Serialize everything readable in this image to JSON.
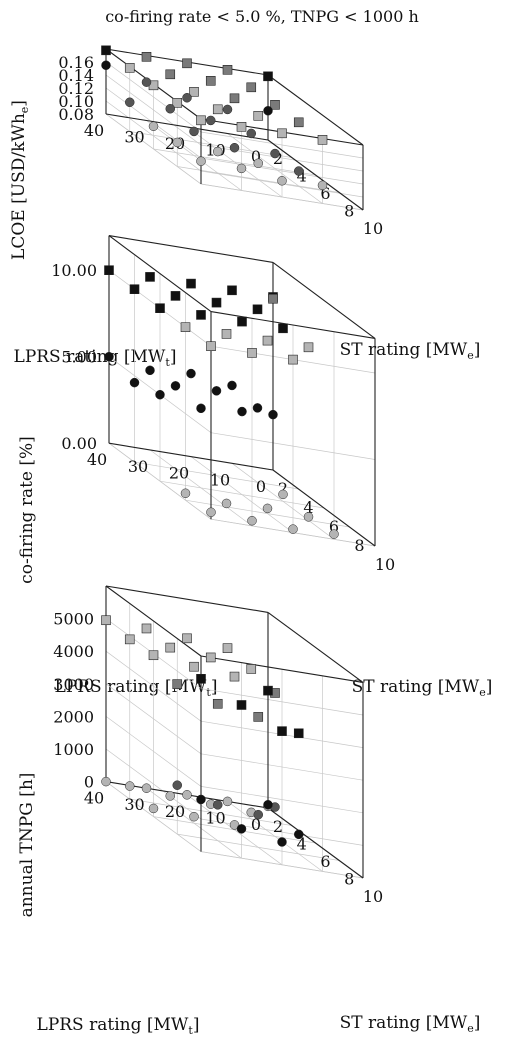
{
  "title": "co-firing rate < 5.0 %, TNPG < 1000 h",
  "colors": {
    "black": "#111111",
    "dark": "#555555",
    "mid": "#7a7a7a",
    "light": "#b4b4b4"
  },
  "chart_data": [
    {
      "type": "scatter3d",
      "xlabel": "ST rating [MW_e]",
      "ylabel": "LPRS rating [MW_t]",
      "zlabel": "LCOE [USD/kWh_e]",
      "xlim": [
        2,
        10
      ],
      "ylim": [
        0,
        40
      ],
      "zlim": [
        0.08,
        0.18
      ],
      "xticks": [
        "2",
        "4",
        "6",
        "8",
        "10"
      ],
      "yticks": [
        "0",
        "10",
        "20",
        "30",
        "40"
      ],
      "zticks": [
        "0.08",
        "0.10",
        "0.12",
        "0.14",
        "0.16"
      ],
      "grid": true,
      "series": [
        {
          "marker": "square",
          "color": "light",
          "points": [
            [
              4,
              40,
              0.178
            ],
            [
              6,
              40,
              0.178
            ],
            [
              8,
              40,
              0.178
            ],
            [
              10,
              40,
              0.178
            ],
            [
              6,
              30,
              0.178
            ],
            [
              8,
              30,
              0.178
            ],
            [
              10,
              30,
              0.178
            ],
            [
              8,
              20,
              0.178
            ],
            [
              10,
              20,
              0.178
            ],
            [
              10,
              10,
              0.178
            ]
          ]
        },
        {
          "marker": "square",
          "color": "mid",
          "points": [
            [
              2,
              30,
              0.178
            ],
            [
              4,
              30,
              0.178
            ],
            [
              2,
              20,
              0.178
            ],
            [
              4,
              20,
              0.178
            ],
            [
              6,
              20,
              0.178
            ],
            [
              2,
              10,
              0.178
            ],
            [
              4,
              10,
              0.178
            ],
            [
              6,
              10,
              0.178
            ],
            [
              8,
              10,
              0.178
            ]
          ]
        },
        {
          "marker": "square",
          "color": "black",
          "points": [
            [
              2,
              40,
              0.178
            ],
            [
              2,
              0,
              0.178
            ]
          ]
        },
        {
          "marker": "circle",
          "color": "black",
          "points": [
            [
              2,
              40,
              0.155
            ],
            [
              2,
              0,
              0.125
            ]
          ]
        },
        {
          "marker": "circle",
          "color": "dark",
          "points": [
            [
              2,
              30,
              0.139
            ],
            [
              2,
              20,
              0.125
            ],
            [
              2,
              10,
              0.117
            ],
            [
              4,
              30,
              0.125
            ],
            [
              4,
              20,
              0.117
            ],
            [
              4,
              10,
              0.107
            ],
            [
              6,
              10,
              0.103
            ],
            [
              4,
              40,
              0.125
            ],
            [
              6,
              20,
              0.102
            ],
            [
              8,
              10,
              0.103
            ],
            [
              6,
              30,
              0.117
            ]
          ]
        },
        {
          "marker": "circle",
          "color": "light",
          "points": [
            [
              6,
              40,
              0.115
            ],
            [
              8,
              40,
              0.117
            ],
            [
              10,
              40,
              0.115
            ],
            [
              8,
              30,
              0.113
            ],
            [
              10,
              30,
              0.114
            ],
            [
              8,
              20,
              0.105
            ],
            [
              10,
              20,
              0.105
            ],
            [
              10,
              10,
              0.108
            ]
          ]
        }
      ]
    },
    {
      "type": "scatter3d",
      "xlabel": "ST rating [MW_e]",
      "ylabel": "LPRS rating [MW_t]",
      "zlabel": "co-firing rate [%]",
      "xlim": [
        2,
        10
      ],
      "ylim": [
        0,
        40
      ],
      "zlim": [
        0,
        12
      ],
      "xticks": [
        "2",
        "4",
        "6",
        "8",
        "10"
      ],
      "yticks": [
        "0",
        "10",
        "20",
        "30",
        "40"
      ],
      "zticks": [
        "0.00",
        "5.00",
        "10.00"
      ],
      "grid": true,
      "series": [
        {
          "marker": "square",
          "color": "black",
          "points": [
            [
              2,
              40,
              10
            ],
            [
              2,
              30,
              10
            ],
            [
              2,
              20,
              10
            ],
            [
              2,
              10,
              10
            ],
            [
              2,
              0,
              10
            ],
            [
              4,
              40,
              10
            ],
            [
              4,
              30,
              10
            ],
            [
              4,
              20,
              10
            ],
            [
              4,
              10,
              10
            ],
            [
              6,
              40,
              10
            ],
            [
              6,
              30,
              10
            ],
            [
              6,
              20,
              10
            ],
            [
              6,
              10,
              10
            ]
          ]
        },
        {
          "marker": "square",
          "color": "light",
          "points": [
            [
              8,
              40,
              10
            ],
            [
              8,
              30,
              10
            ],
            [
              8,
              20,
              10
            ],
            [
              10,
              40,
              10
            ],
            [
              10,
              30,
              10
            ],
            [
              10,
              20,
              10
            ],
            [
              8,
              10,
              10
            ]
          ]
        },
        {
          "marker": "square",
          "color": "mid",
          "points": [
            [
              2,
              0,
              9.9
            ]
          ]
        },
        {
          "marker": "circle",
          "color": "black",
          "points": [
            [
              2,
              40,
              5.0
            ],
            [
              2,
              30,
              4.6
            ],
            [
              2,
              20,
              4.8
            ],
            [
              2,
              10,
              4.5
            ],
            [
              2,
              0,
              3.2
            ],
            [
              4,
              40,
              4.6
            ],
            [
              4,
              30,
              4.8
            ],
            [
              4,
              20,
              4.9
            ],
            [
              4,
              10,
              4.3
            ],
            [
              6,
              40,
              5.0
            ],
            [
              6,
              30,
              4.6
            ],
            [
              6,
              20,
              4.8
            ]
          ]
        },
        {
          "marker": "circle",
          "color": "light",
          "points": [
            [
              6,
              10,
              0.4
            ],
            [
              8,
              40,
              0.4
            ],
            [
              8,
              30,
              0.2
            ],
            [
              8,
              20,
              0.3
            ],
            [
              8,
              10,
              0.2
            ],
            [
              10,
              40,
              0.4
            ],
            [
              10,
              30,
              0.3
            ],
            [
              10,
              20,
              0.2
            ],
            [
              10,
              10,
              0.3
            ]
          ]
        }
      ]
    },
    {
      "type": "scatter3d",
      "xlabel": "ST rating [MW_e]",
      "ylabel": "LPRS rating [MW_t]",
      "zlabel": "annual TNPG [h]",
      "xlim": [
        2,
        10
      ],
      "ylim": [
        0,
        40
      ],
      "zlim": [
        0,
        6000
      ],
      "xticks": [
        "2",
        "4",
        "6",
        "8",
        "10"
      ],
      "yticks": [
        "0",
        "10",
        "20",
        "30",
        "40"
      ],
      "zticks": [
        "0",
        "1000",
        "2000",
        "3000",
        "4000",
        "5000"
      ],
      "grid": true,
      "series": [
        {
          "marker": "square",
          "color": "light",
          "points": [
            [
              2,
              40,
              4950
            ],
            [
              2,
              30,
              4900
            ],
            [
              2,
              20,
              4800
            ],
            [
              2,
              10,
              4700
            ],
            [
              4,
              40,
              4900
            ],
            [
              4,
              30,
              4850
            ],
            [
              4,
              20,
              4750
            ],
            [
              4,
              10,
              4600
            ],
            [
              6,
              40,
              4950
            ],
            [
              6,
              30,
              4800
            ],
            [
              6,
              20,
              4700
            ]
          ]
        },
        {
          "marker": "square",
          "color": "mid",
          "points": [
            [
              8,
              40,
              4600
            ],
            [
              8,
              30,
              4200
            ],
            [
              8,
              20,
              4000
            ],
            [
              6,
              10,
              4400
            ]
          ]
        },
        {
          "marker": "square",
          "color": "black",
          "points": [
            [
              10,
              40,
              5300
            ],
            [
              10,
              30,
              4700
            ],
            [
              10,
              20,
              4100
            ],
            [
              8,
              10,
              3700
            ],
            [
              2,
              0,
              3600
            ]
          ]
        },
        {
          "marker": "circle",
          "color": "light",
          "points": [
            [
              2,
              40,
              0
            ],
            [
              2,
              30,
              0
            ],
            [
              2,
              20,
              0
            ],
            [
              2,
              10,
              0
            ],
            [
              4,
              40,
              400
            ],
            [
              4,
              30,
              300
            ],
            [
              4,
              20,
              250
            ],
            [
              4,
              10,
              200
            ],
            [
              6,
              40,
              250
            ],
            [
              6,
              30,
              200
            ],
            [
              6,
              20,
              150
            ],
            [
              2,
              0,
              50
            ]
          ]
        },
        {
          "marker": "circle",
          "color": "dark",
          "points": [
            [
              8,
              40,
              1500
            ],
            [
              8,
              30,
              1100
            ],
            [
              8,
              20,
              1000
            ],
            [
              6,
              10,
              900
            ]
          ]
        },
        {
          "marker": "circle",
          "color": "black",
          "points": [
            [
              10,
              40,
              1600
            ],
            [
              10,
              30,
              900
            ],
            [
              10,
              20,
              700
            ],
            [
              8,
              10,
              600
            ],
            [
              2,
              0,
              100
            ]
          ]
        }
      ]
    }
  ]
}
